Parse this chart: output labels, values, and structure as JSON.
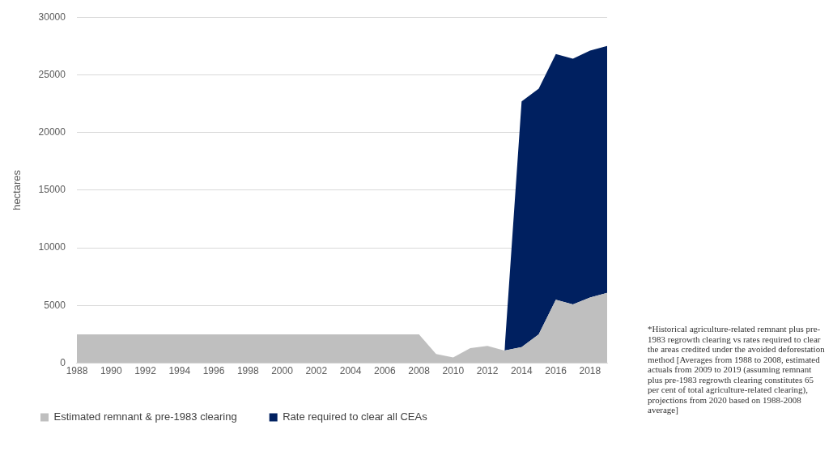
{
  "chart_data": {
    "type": "area",
    "ylabel": "hectares",
    "stacked": true,
    "categories": [
      "1988",
      null,
      "1990",
      null,
      "1992",
      null,
      "1994",
      null,
      "1996",
      null,
      "1998",
      null,
      "2000",
      null,
      "2002",
      null,
      "2004",
      null,
      "2006",
      null,
      "2008",
      null,
      "2010",
      null,
      "2012",
      null,
      "2014",
      null,
      "2016",
      null,
      "2018",
      null
    ],
    "series": [
      {
        "name": "Estimated remnant & pre-1983 clearing",
        "color": "#bfbfbf",
        "values": [
          2500,
          2500,
          2500,
          2500,
          2500,
          2500,
          2500,
          2500,
          2500,
          2500,
          2500,
          2500,
          2500,
          2500,
          2500,
          2500,
          2500,
          2500,
          2500,
          2500,
          2500,
          800,
          500,
          1300,
          1500,
          1100,
          1400,
          2500,
          5500,
          5100,
          5700,
          6100
        ]
      },
      {
        "name": "Rate required to clear all CEAs",
        "color": "#002060",
        "values": [
          null,
          null,
          null,
          null,
          null,
          null,
          null,
          null,
          null,
          null,
          null,
          null,
          null,
          null,
          null,
          null,
          null,
          null,
          null,
          null,
          null,
          null,
          null,
          null,
          null,
          0,
          21300,
          21300,
          21300,
          21300,
          21400,
          21400
        ]
      }
    ],
    "ylim": [
      0,
      30000
    ],
    "yticks": [
      0,
      5000,
      10000,
      15000,
      20000,
      25000,
      30000
    ],
    "grid": "y",
    "legend": "bottom",
    "marker": "none",
    "annotations": [
      "*Historical agriculture-related remnant plus pre-1983 regrowth clearing vs rates required to clear the areas credited under the avoided deforestation method [Averages from 1988 to 2008, estimated actuals from 2009 to 2019 (assuming remnant plus pre-1983 regrowth clearing constitutes 65 per cent of total agriculture-related clearing), projections from 2020 based on 1988-2008 average]"
    ]
  }
}
